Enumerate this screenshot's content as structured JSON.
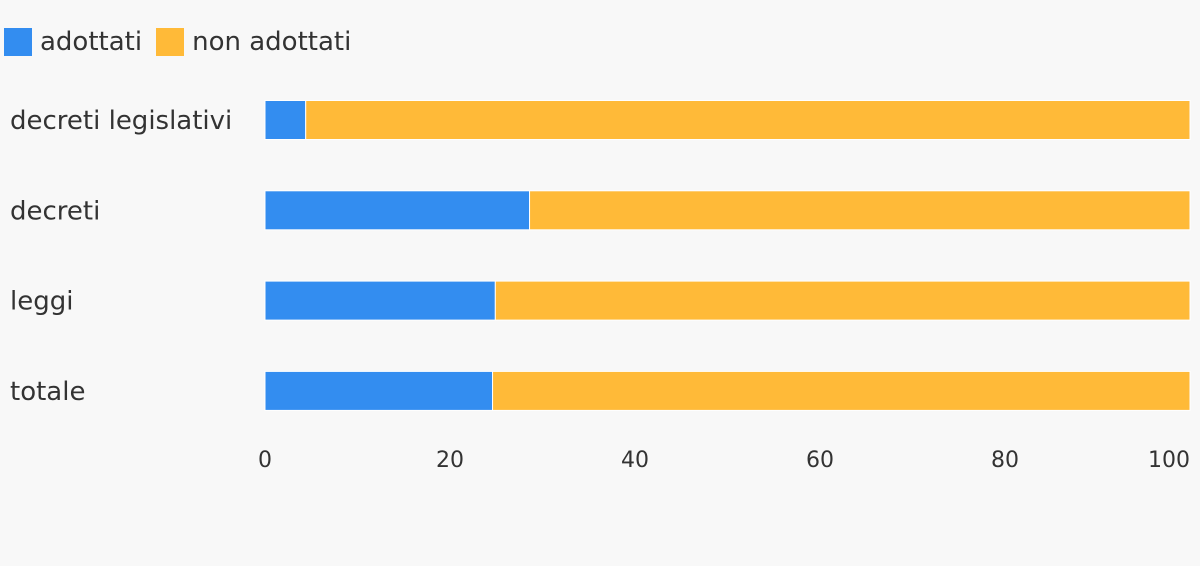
{
  "colors": {
    "adottati": "#338df0",
    "non_adottati": "#ffba38",
    "background": "#f8f8f8",
    "text": "#333333"
  },
  "legend": {
    "adottati": "adottati",
    "non_adottati": "non adottati"
  },
  "chart_data": {
    "type": "bar",
    "orientation": "horizontal",
    "stacked": true,
    "title": "",
    "xlabel": "",
    "ylabel": "",
    "categories": [
      "decreti legislativi",
      "decreti",
      "leggi",
      "totale"
    ],
    "series": [
      {
        "name": "adottati",
        "color": "#338df0",
        "values": [
          4.4,
          28.6,
          24.9,
          24.6
        ]
      },
      {
        "name": "non adottati",
        "color": "#ffba38",
        "values": [
          95.6,
          71.4,
          75.1,
          75.4
        ]
      }
    ],
    "xlim": [
      0,
      100
    ],
    "xticks": [
      "0",
      "20",
      "40",
      "60",
      "80",
      "100"
    ],
    "grid": false,
    "legend_position": "top-left"
  }
}
